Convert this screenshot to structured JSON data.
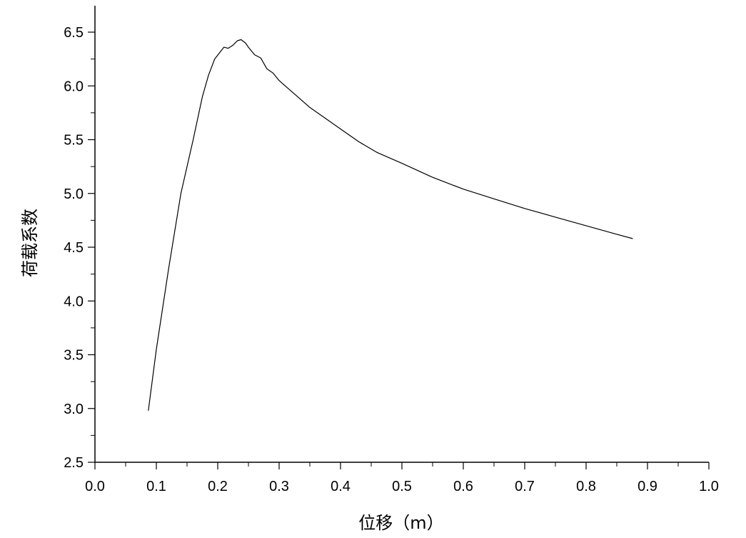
{
  "chart_data": {
    "type": "line",
    "xlabel": "位移（m）",
    "ylabel": "荷载系数",
    "xlim": [
      0.0,
      1.0
    ],
    "ylim": [
      2.5,
      6.5
    ],
    "x_ticks": [
      "0.0",
      "0.1",
      "0.2",
      "0.3",
      "0.4",
      "0.5",
      "0.6",
      "0.7",
      "0.8",
      "0.9",
      "1.0"
    ],
    "y_ticks": [
      "2.5",
      "3.0",
      "3.5",
      "4.0",
      "4.5",
      "5.0",
      "5.5",
      "6.0",
      "6.5"
    ],
    "grid": false,
    "series": [
      {
        "color": "#000000",
        "x": [
          0.087,
          0.1,
          0.12,
          0.14,
          0.16,
          0.175,
          0.185,
          0.195,
          0.21,
          0.217,
          0.225,
          0.232,
          0.238,
          0.245,
          0.25,
          0.26,
          0.27,
          0.28,
          0.29,
          0.3,
          0.31,
          0.32,
          0.33,
          0.34,
          0.35,
          0.37,
          0.4,
          0.43,
          0.46,
          0.5,
          0.55,
          0.6,
          0.65,
          0.7,
          0.75,
          0.8,
          0.85,
          0.876
        ],
        "y": [
          2.98,
          3.55,
          4.3,
          5.0,
          5.5,
          5.9,
          6.1,
          6.25,
          6.36,
          6.35,
          6.38,
          6.42,
          6.43,
          6.4,
          6.36,
          6.29,
          6.26,
          6.16,
          6.12,
          6.05,
          6.0,
          5.95,
          5.9,
          5.85,
          5.8,
          5.72,
          5.6,
          5.48,
          5.38,
          5.28,
          5.15,
          5.04,
          4.95,
          4.86,
          4.78,
          4.7,
          4.62,
          4.58
        ]
      }
    ]
  }
}
